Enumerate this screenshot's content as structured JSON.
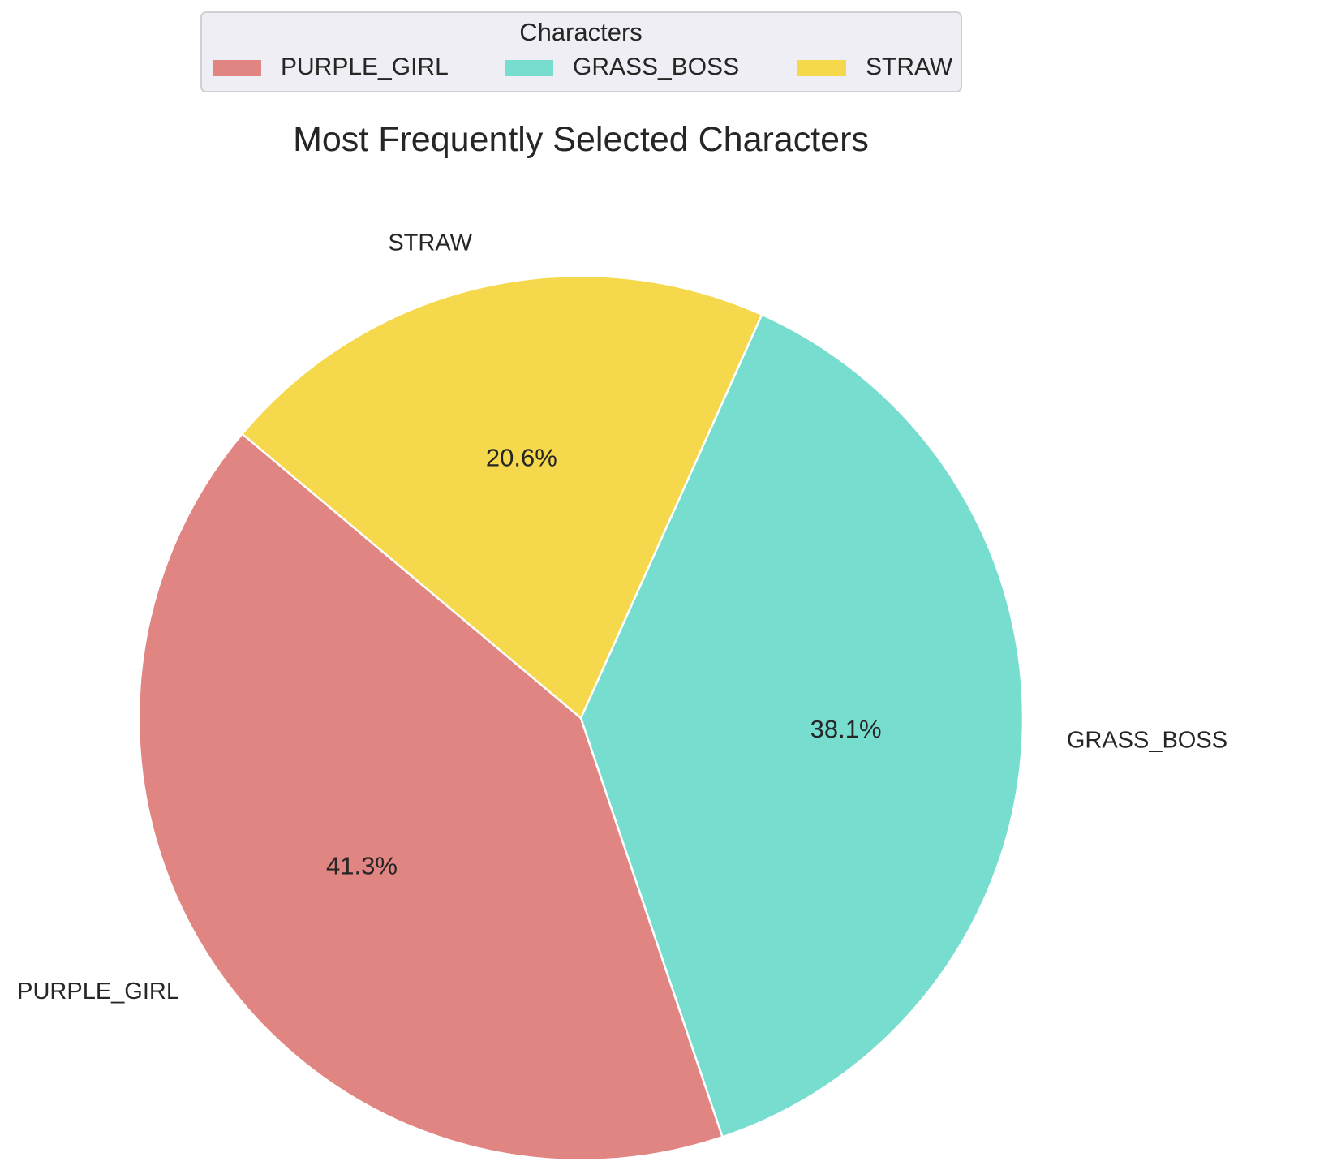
{
  "chart_data": {
    "type": "pie",
    "title": "Most Frequently Selected Characters",
    "legend": {
      "title": "Characters",
      "position": "top-center"
    },
    "start_angle_deg": 140,
    "direction": "counterclockwise",
    "slices": [
      {
        "label": "PURPLE_GIRL",
        "value": 41.3,
        "pct_label": "41.3%",
        "color": "#e08582"
      },
      {
        "label": "GRASS_BOSS",
        "value": 38.1,
        "pct_label": "38.1%",
        "color": "#77ddcf"
      },
      {
        "label": "STRAW",
        "value": 20.6,
        "pct_label": "20.6%",
        "color": "#f5d84b"
      }
    ]
  }
}
